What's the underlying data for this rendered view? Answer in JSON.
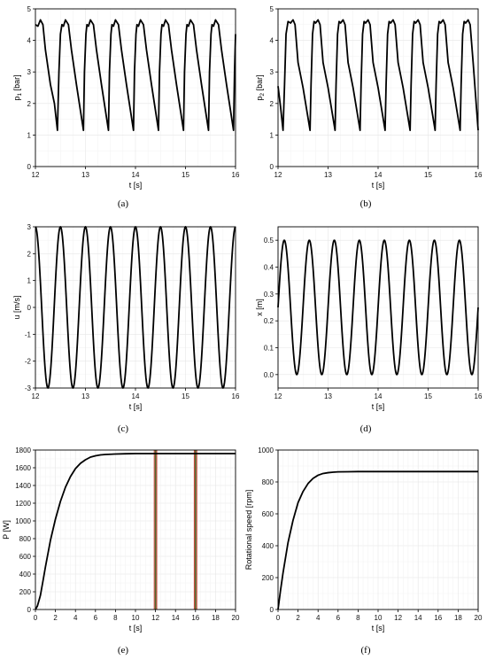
{
  "chart_data": [
    {
      "type": "line",
      "caption": "(a)",
      "xlabel": "t [s]",
      "ylabel": "p",
      "ylabel_sub": "1",
      "ylabel_unit": " [bar]",
      "xlim": [
        12,
        16
      ],
      "ylim": [
        0,
        5
      ],
      "xticks": [
        12,
        13,
        14,
        15,
        16
      ],
      "yticks": [
        0,
        1,
        2,
        3,
        4,
        5
      ],
      "grid": true,
      "series": [
        {
          "x": [
            12.0,
            12.05,
            12.1,
            12.15,
            12.2,
            12.3,
            12.38,
            12.44,
            12.47,
            12.5,
            12.53,
            12.56,
            12.6,
            12.66,
            12.72,
            12.82,
            12.96,
            12.98,
            13.01,
            13.03,
            13.06,
            13.1,
            13.16,
            13.22,
            13.32,
            13.46,
            13.48,
            13.51,
            13.53,
            13.56,
            13.6,
            13.66,
            13.72,
            13.82,
            13.96,
            13.98,
            14.01,
            14.03,
            14.06,
            14.1,
            14.16,
            14.22,
            14.32,
            14.46,
            14.48,
            14.51,
            14.53,
            14.56,
            14.6,
            14.66,
            14.72,
            14.82,
            14.96,
            14.98,
            15.01,
            15.03,
            15.06,
            15.1,
            15.16,
            15.22,
            15.32,
            15.46,
            15.48,
            15.51,
            15.53,
            15.56,
            15.6,
            15.66,
            15.72,
            15.82,
            15.96,
            15.98,
            16.0
          ],
          "y": [
            4.5,
            4.45,
            4.65,
            4.5,
            3.7,
            2.6,
            2.0,
            1.15,
            3.0,
            4.2,
            4.5,
            4.45,
            4.65,
            4.5,
            3.7,
            2.6,
            1.15,
            3.0,
            4.2,
            4.5,
            4.45,
            4.65,
            4.5,
            3.7,
            2.6,
            1.15,
            3.0,
            4.2,
            4.5,
            4.45,
            4.65,
            4.5,
            3.7,
            2.6,
            1.15,
            3.0,
            4.2,
            4.5,
            4.45,
            4.65,
            4.5,
            3.7,
            2.6,
            1.15,
            3.0,
            4.2,
            4.5,
            4.45,
            4.65,
            4.5,
            3.7,
            2.6,
            1.15,
            3.0,
            4.2,
            4.5,
            4.45,
            4.65,
            4.5,
            3.7,
            2.6,
            1.15,
            3.0,
            4.2,
            4.5,
            4.45,
            4.65,
            4.5,
            3.7,
            2.6,
            1.15,
            3.0,
            4.2
          ]
        }
      ]
    },
    {
      "type": "line",
      "caption": "(b)",
      "xlabel": "t [s]",
      "ylabel": "p",
      "ylabel_sub": "2",
      "ylabel_unit": " [bar]",
      "xlim": [
        12,
        16
      ],
      "ylim": [
        0,
        5
      ],
      "xticks": [
        12,
        13,
        14,
        15,
        16
      ],
      "yticks": [
        0,
        1,
        2,
        3,
        4,
        5
      ],
      "grid": true,
      "series": [
        {
          "x": [
            12.0,
            12.05,
            12.1,
            12.13,
            12.16,
            12.2,
            12.25,
            12.3,
            12.34,
            12.4,
            12.5,
            12.64,
            12.66,
            12.69,
            12.72,
            12.75,
            12.8,
            12.84,
            12.9,
            13.0,
            13.14,
            13.16,
            13.19,
            13.22,
            13.25,
            13.3,
            13.34,
            13.4,
            13.5,
            13.64,
            13.66,
            13.69,
            13.72,
            13.75,
            13.8,
            13.84,
            13.9,
            14.0,
            14.14,
            14.16,
            14.19,
            14.22,
            14.25,
            14.3,
            14.34,
            14.4,
            14.5,
            14.64,
            14.66,
            14.69,
            14.72,
            14.75,
            14.8,
            14.84,
            14.9,
            15.0,
            15.14,
            15.16,
            15.19,
            15.22,
            15.25,
            15.3,
            15.34,
            15.4,
            15.5,
            15.64,
            15.66,
            15.69,
            15.72,
            15.75,
            15.8,
            15.84,
            15.9,
            16.0
          ],
          "y": [
            2.55,
            1.9,
            1.15,
            2.6,
            4.2,
            4.6,
            4.55,
            4.65,
            4.5,
            3.3,
            2.5,
            1.15,
            2.6,
            4.2,
            4.6,
            4.55,
            4.65,
            4.5,
            3.3,
            2.5,
            1.15,
            2.6,
            4.2,
            4.6,
            4.55,
            4.65,
            4.5,
            3.3,
            2.5,
            1.15,
            2.6,
            4.2,
            4.6,
            4.55,
            4.65,
            4.5,
            3.3,
            2.5,
            1.15,
            2.6,
            4.2,
            4.6,
            4.55,
            4.65,
            4.5,
            3.3,
            2.5,
            1.15,
            2.6,
            4.2,
            4.6,
            4.55,
            4.65,
            4.5,
            3.3,
            2.5,
            1.15,
            2.6,
            4.2,
            4.6,
            4.55,
            4.65,
            4.5,
            3.3,
            2.5,
            1.15,
            2.6,
            4.2,
            4.6,
            4.55,
            4.65,
            4.5,
            3.3,
            1.15
          ]
        }
      ]
    },
    {
      "type": "line",
      "caption": "(c)",
      "xlabel": "t [s]",
      "ylabel": "u [m/s]",
      "xlim": [
        12,
        16
      ],
      "ylim": [
        -3,
        3
      ],
      "xticks": [
        12,
        13,
        14,
        15,
        16
      ],
      "yticks": [
        -3,
        -2,
        -1,
        0,
        1,
        2,
        3
      ],
      "grid": true,
      "wave": {
        "amplitude": 3,
        "offset": 0,
        "period": 0.5,
        "peak_at": 12.0,
        "step": 0.01
      }
    },
    {
      "type": "line",
      "caption": "(d)",
      "xlabel": "t [s]",
      "ylabel": "x [m]",
      "xlim": [
        12,
        16
      ],
      "ylim": [
        -0.05,
        0.55
      ],
      "xticks": [
        12,
        13,
        14,
        15,
        16
      ],
      "yticks": [
        0.0,
        0.1,
        0.2,
        0.3,
        0.4,
        0.5
      ],
      "ytick_labels": [
        "0.0",
        "0.1",
        "0.2",
        "0.3",
        "0.4",
        "0.5"
      ],
      "grid": true,
      "wave": {
        "amplitude": 0.25,
        "offset": 0.25,
        "period": 0.5,
        "peak_at": 12.125,
        "step": 0.01
      }
    },
    {
      "type": "line",
      "caption": "(e)",
      "xlabel": "t [s]",
      "ylabel": "P [W]",
      "xlim": [
        0,
        20
      ],
      "ylim": [
        0,
        1800
      ],
      "xticks": [
        0,
        2,
        4,
        6,
        8,
        10,
        12,
        14,
        16,
        18,
        20
      ],
      "yticks": [
        0,
        200,
        400,
        600,
        800,
        1000,
        1200,
        1400,
        1600,
        1800
      ],
      "grid": true,
      "series": [
        {
          "x": [
            0,
            0.2,
            0.5,
            0.8,
            1.0,
            1.5,
            2.0,
            2.5,
            3.0,
            3.5,
            4.0,
            4.5,
            5.0,
            5.5,
            6.0,
            6.5,
            7.0,
            8.0,
            9.0,
            10.0,
            12.0,
            14.0,
            16.0,
            18.0,
            20.0
          ],
          "y": [
            0,
            40,
            160,
            350,
            480,
            780,
            1020,
            1220,
            1380,
            1500,
            1590,
            1650,
            1690,
            1720,
            1735,
            1745,
            1750,
            1755,
            1758,
            1760,
            1760,
            1760,
            1760,
            1760,
            1760
          ]
        }
      ],
      "markers": {
        "x": [
          12,
          16
        ],
        "colors": [
          "#c0392b",
          "#556b2f",
          "#c0392b"
        ]
      }
    },
    {
      "type": "line",
      "caption": "(f)",
      "xlabel": "t [s]",
      "ylabel": "Rotational speed [rpm]",
      "xlim": [
        0,
        20
      ],
      "ylim": [
        0,
        1000
      ],
      "xticks": [
        0,
        2,
        4,
        6,
        8,
        10,
        12,
        14,
        16,
        18,
        20
      ],
      "yticks": [
        0,
        200,
        400,
        600,
        800,
        1000
      ],
      "grid": true,
      "series": [
        {
          "x": [
            0,
            0.25,
            0.5,
            1.0,
            1.5,
            2.0,
            2.5,
            3.0,
            3.5,
            4.0,
            4.5,
            5.0,
            5.5,
            6.0,
            7.0,
            8.0,
            9.0,
            10.0,
            12.0,
            14.0,
            16.0,
            18.0,
            20.0
          ],
          "y": [
            0,
            120,
            230,
            420,
            560,
            670,
            740,
            790,
            822,
            842,
            853,
            858,
            861,
            863,
            864,
            865,
            865,
            865,
            865,
            865,
            865,
            865,
            865
          ]
        }
      ]
    }
  ]
}
